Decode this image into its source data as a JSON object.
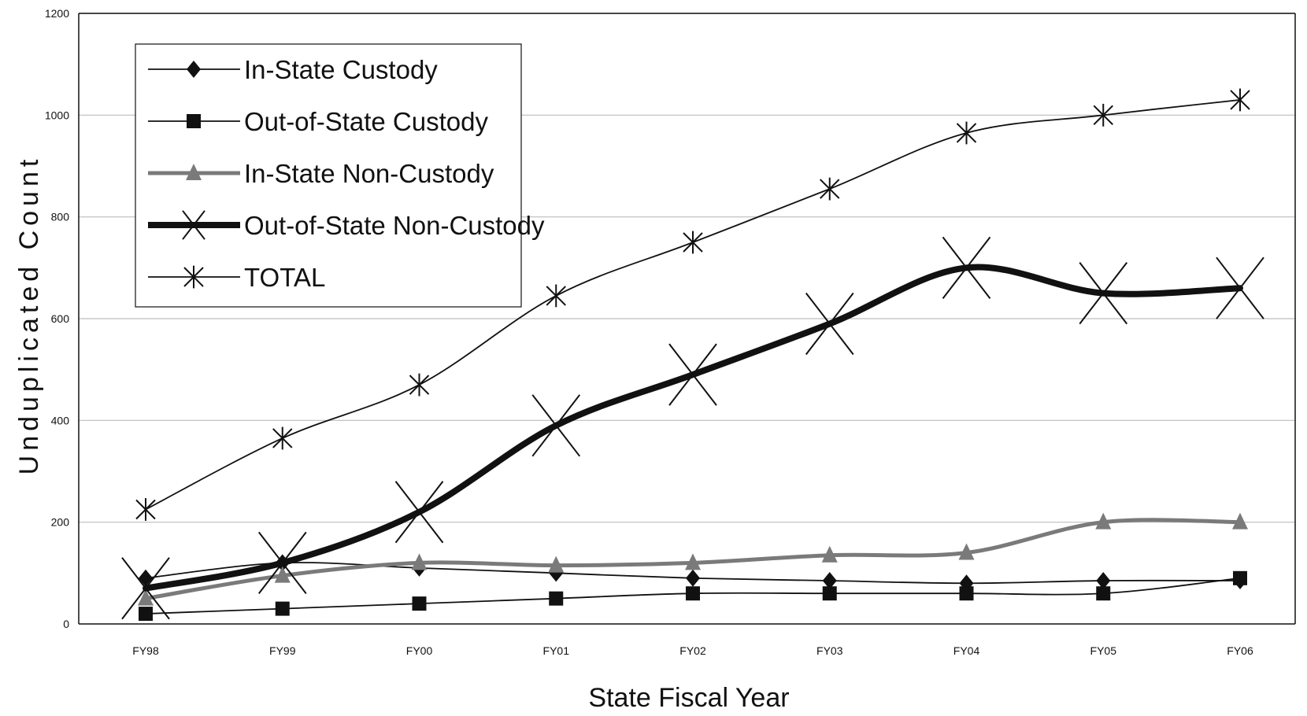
{
  "chart_data": {
    "type": "line",
    "title": "",
    "xlabel": "State Fiscal Year",
    "ylabel": "Unduplicated Count",
    "categories": [
      "FY98",
      "FY99",
      "FY00",
      "FY01",
      "FY02",
      "FY03",
      "FY04",
      "FY05",
      "FY06"
    ],
    "ylim": [
      0,
      1200
    ],
    "yticks": [
      0,
      200,
      400,
      600,
      800,
      1000,
      1200
    ],
    "grid": true,
    "legend_position": "top-left",
    "series": [
      {
        "name": "In-State Custody",
        "marker": "diamond",
        "color": "#111111",
        "values": [
          90,
          120,
          110,
          100,
          90,
          85,
          80,
          85,
          85
        ]
      },
      {
        "name": "Out-of-State Custody",
        "marker": "square",
        "color": "#111111",
        "values": [
          20,
          30,
          40,
          50,
          60,
          60,
          60,
          60,
          90
        ]
      },
      {
        "name": "In-State Non-Custody",
        "marker": "triangle",
        "color": "#777777",
        "values": [
          50,
          95,
          120,
          115,
          120,
          135,
          140,
          200,
          200
        ]
      },
      {
        "name": "Out-of-State Non-Custody",
        "marker": "x",
        "color": "#111111",
        "values": [
          70,
          120,
          220,
          390,
          490,
          590,
          700,
          650,
          660
        ]
      },
      {
        "name": "TOTAL",
        "marker": "asterisk",
        "color": "#111111",
        "values": [
          225,
          365,
          470,
          645,
          750,
          855,
          965,
          1000,
          1030
        ]
      }
    ]
  }
}
